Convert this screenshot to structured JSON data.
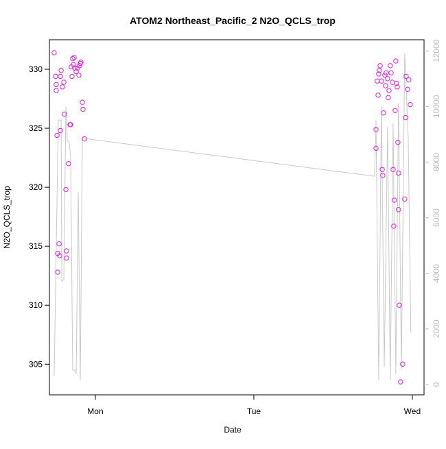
{
  "chart_data": {
    "type": "scatter",
    "title": "ATOM2 Northeast_Pacific_2 N2O_QCLS_trop",
    "xlabel": "Date",
    "ylabel": "N2O_QCLS_trop",
    "xlim": [
      0.71,
      3.074
    ],
    "xticks": [
      {
        "value": 1,
        "label": "Mon"
      },
      {
        "value": 2,
        "label": "Tue"
      },
      {
        "value": 3,
        "label": "Wed"
      }
    ],
    "ylim": [
      302.4,
      332.5
    ],
    "yticks": [
      305,
      310,
      315,
      320,
      325,
      330
    ],
    "y2lim": [
      -370,
      12400
    ],
    "y2ticks": [
      0,
      2000,
      4000,
      6000,
      8000,
      10000,
      12000
    ],
    "series": [
      {
        "type": "scatter",
        "color": "#e619e6",
        "x": [
          0.74,
          0.749,
          0.753,
          0.753,
          0.758,
          0.762,
          0.762,
          0.771,
          0.775,
          0.779,
          0.784,
          0.779,
          0.792,
          0.801,
          0.805,
          0.814,
          0.818,
          0.818,
          0.831,
          0.84,
          0.844,
          0.848,
          0.853,
          0.857,
          0.861,
          0.866,
          0.87,
          0.879,
          0.887,
          0.896,
          0.9,
          0.905,
          0.909,
          0.918,
          0.922,
          0.931,
          2.771,
          2.771,
          2.779,
          2.784,
          2.788,
          2.792,
          2.797,
          2.805,
          2.81,
          2.814,
          2.818,
          2.827,
          2.831,
          2.835,
          2.844,
          2.848,
          2.853,
          2.861,
          2.866,
          2.874,
          2.879,
          2.883,
          2.887,
          2.892,
          2.896,
          2.9,
          2.905,
          2.909,
          2.913,
          2.913,
          2.918,
          2.926,
          2.939,
          2.952,
          2.957,
          2.961,
          2.97,
          2.978,
          2.987
        ],
        "values": [
          331.4,
          329.4,
          328.7,
          328.2,
          324.4,
          314.4,
          312.8,
          315.2,
          314.2,
          329.4,
          329.9,
          324.8,
          328.5,
          328.9,
          326.2,
          319.8,
          314.6,
          314.0,
          322.0,
          325.3,
          325.3,
          330.2,
          329.4,
          330.9,
          330.4,
          331.0,
          330.1,
          329.8,
          330.1,
          329.5,
          330.3,
          330.5,
          330.6,
          327.2,
          326.6,
          324.1,
          324.9,
          323.3,
          329.0,
          327.8,
          329.6,
          329.9,
          330.3,
          329.0,
          321.5,
          321.0,
          326.3,
          329.5,
          328.6,
          329.7,
          329.2,
          327.6,
          328.2,
          330.3,
          329.7,
          328.9,
          321.5,
          316.7,
          318.9,
          326.5,
          330.7,
          328.8,
          328.5,
          323.8,
          321.2,
          318.1,
          310.0,
          303.5,
          305.0,
          319.0,
          325.9,
          329.4,
          328.3,
          329.1,
          327.0
        ]
      },
      {
        "type": "line",
        "axis": "y2",
        "color": "#c8c8c8",
        "x": [
          0.74,
          0.766,
          0.784,
          0.788,
          0.801,
          0.814,
          0.823,
          0.835,
          0.844,
          0.857,
          0.87,
          0.879,
          0.892,
          0.905,
          0.918,
          0.931,
          2.762,
          2.771,
          2.788,
          2.805,
          2.823,
          2.844,
          2.861,
          2.879,
          2.896,
          2.913,
          2.931,
          2.952,
          2.974,
          2.991
        ],
        "values": [
          320,
          9510,
          9510,
          3720,
          3770,
          10000,
          8770,
          8700,
          8210,
          520,
          520,
          390,
          6920,
          150,
          8900,
          8850,
          7490,
          9510,
          150,
          10000,
          640,
          9270,
          150,
          9390,
          390,
          10130,
          520,
          11900,
          8900,
          1870
        ]
      }
    ]
  }
}
